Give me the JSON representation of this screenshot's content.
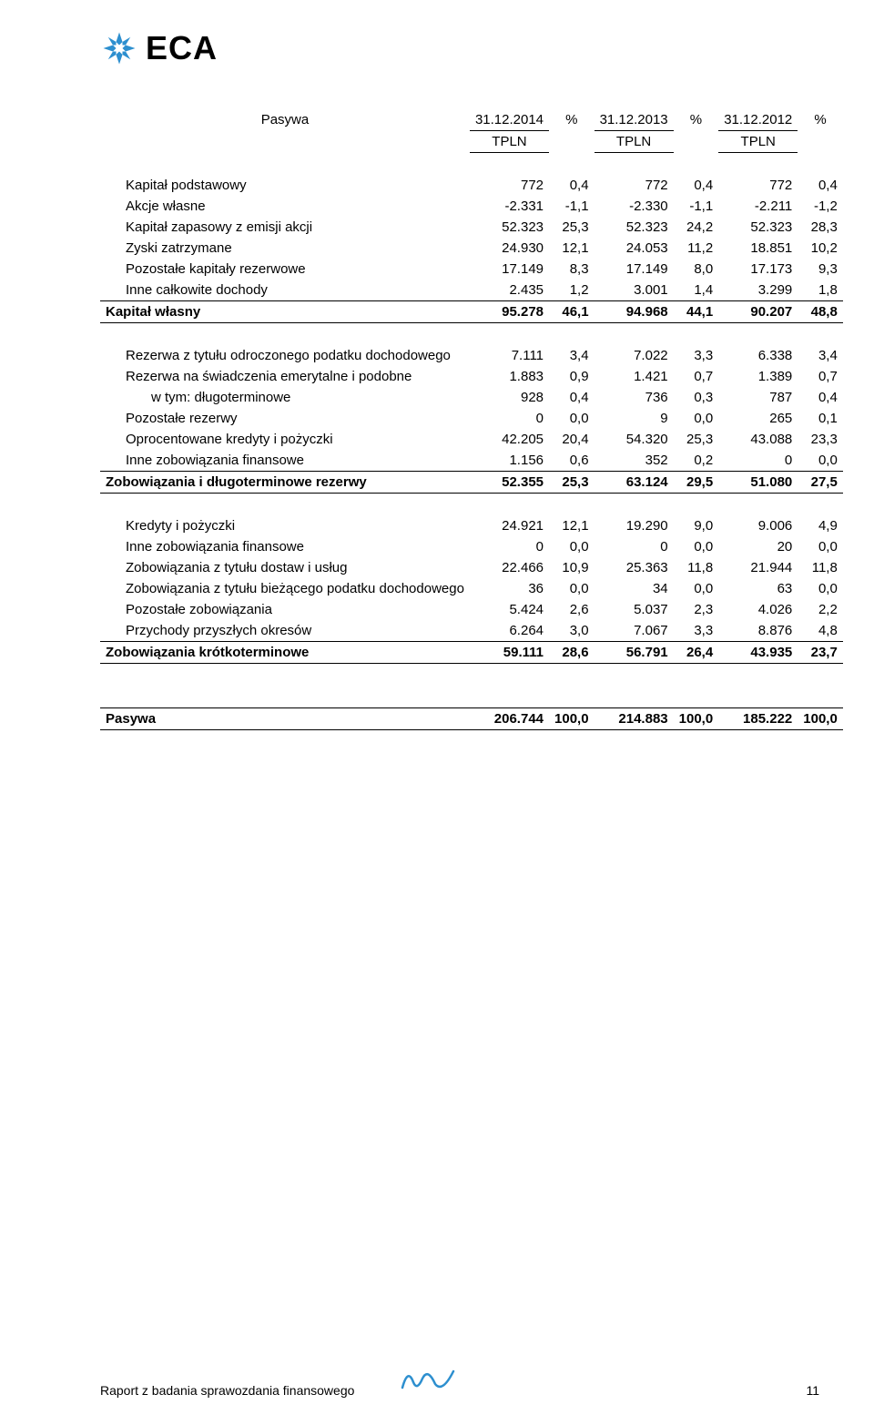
{
  "brand": {
    "name": "ECA",
    "logo_color": "#2d8fcf"
  },
  "header": {
    "row_label": "Pasywa",
    "cols": [
      {
        "date": "31.12.2014",
        "unit": "TPLN",
        "pct": "%"
      },
      {
        "date": "31.12.2013",
        "unit": "TPLN",
        "pct": "%"
      },
      {
        "date": "31.12.2012",
        "unit": "TPLN",
        "pct": "%"
      }
    ]
  },
  "sections": [
    {
      "rows": [
        {
          "label": "Kapitał podstawowy",
          "indent": 1,
          "v": [
            "772",
            "0,4",
            "772",
            "0,4",
            "772",
            "0,4"
          ]
        },
        {
          "label": "Akcje własne",
          "indent": 1,
          "v": [
            "-2.331",
            "-1,1",
            "-2.330",
            "-1,1",
            "-2.211",
            "-1,2"
          ]
        },
        {
          "label": "Kapitał zapasowy z emisji akcji",
          "indent": 1,
          "v": [
            "52.323",
            "25,3",
            "52.323",
            "24,2",
            "52.323",
            "28,3"
          ]
        },
        {
          "label": "Zyski zatrzymane",
          "indent": 1,
          "v": [
            "24.930",
            "12,1",
            "24.053",
            "11,2",
            "18.851",
            "10,2"
          ]
        },
        {
          "label": "Pozostałe kapitały rezerwowe",
          "indent": 1,
          "v": [
            "17.149",
            "8,3",
            "17.149",
            "8,0",
            "17.173",
            "9,3"
          ]
        },
        {
          "label": "Inne całkowite dochody",
          "indent": 1,
          "v": [
            "2.435",
            "1,2",
            "3.001",
            "1,4",
            "3.299",
            "1,8"
          ]
        }
      ],
      "total": {
        "label": "Kapitał własny",
        "v": [
          "95.278",
          "46,1",
          "94.968",
          "44,1",
          "90.207",
          "48,8"
        ]
      }
    },
    {
      "rows": [
        {
          "label": "Rezerwa z tytułu odroczonego podatku dochodowego",
          "indent": 1,
          "v": [
            "7.111",
            "3,4",
            "7.022",
            "3,3",
            "6.338",
            "3,4"
          ]
        },
        {
          "label": "Rezerwa na świadczenia emerytalne i podobne",
          "indent": 1,
          "v": [
            "1.883",
            "0,9",
            "1.421",
            "0,7",
            "1.389",
            "0,7"
          ]
        },
        {
          "label": "w tym: długoterminowe",
          "indent": 2,
          "v": [
            "928",
            "0,4",
            "736",
            "0,3",
            "787",
            "0,4"
          ]
        },
        {
          "label": "Pozostałe rezerwy",
          "indent": 1,
          "v": [
            "0",
            "0,0",
            "9",
            "0,0",
            "265",
            "0,1"
          ]
        },
        {
          "label": "Oprocentowane kredyty i pożyczki",
          "indent": 1,
          "v": [
            "42.205",
            "20,4",
            "54.320",
            "25,3",
            "43.088",
            "23,3"
          ]
        },
        {
          "label": "Inne zobowiązania finansowe",
          "indent": 1,
          "v": [
            "1.156",
            "0,6",
            "352",
            "0,2",
            "0",
            "0,0"
          ]
        }
      ],
      "total": {
        "label": "Zobowiązania i długoterminowe rezerwy",
        "v": [
          "52.355",
          "25,3",
          "63.124",
          "29,5",
          "51.080",
          "27,5"
        ]
      }
    },
    {
      "rows": [
        {
          "label": "Kredyty i pożyczki",
          "indent": 1,
          "v": [
            "24.921",
            "12,1",
            "19.290",
            "9,0",
            "9.006",
            "4,9"
          ]
        },
        {
          "label": "Inne zobowiązania finansowe",
          "indent": 1,
          "v": [
            "0",
            "0,0",
            "0",
            "0,0",
            "20",
            "0,0"
          ]
        },
        {
          "label": "Zobowiązania z tytułu dostaw i usług",
          "indent": 1,
          "v": [
            "22.466",
            "10,9",
            "25.363",
            "11,8",
            "21.944",
            "11,8"
          ]
        },
        {
          "label": "Zobowiązania z tytułu bieżącego podatku dochodowego",
          "indent": 1,
          "v": [
            "36",
            "0,0",
            "34",
            "0,0",
            "63",
            "0,0"
          ]
        },
        {
          "label": "Pozostałe zobowiązania",
          "indent": 1,
          "v": [
            "5.424",
            "2,6",
            "5.037",
            "2,3",
            "4.026",
            "2,2"
          ]
        },
        {
          "label": "Przychody przyszłych okresów",
          "indent": 1,
          "v": [
            "6.264",
            "3,0",
            "7.067",
            "3,3",
            "8.876",
            "4,8"
          ]
        }
      ],
      "total": {
        "label": "Zobowiązania krótkoterminowe",
        "v": [
          "59.111",
          "28,6",
          "56.791",
          "26,4",
          "43.935",
          "23,7"
        ]
      }
    }
  ],
  "grand_total": {
    "label": "Pasywa",
    "v": [
      "206.744",
      "100,0",
      "214.883",
      "100,0",
      "185.222",
      "100,0"
    ]
  },
  "footer": {
    "left": "Raport z badania sprawozdania finansowego",
    "page_no": "11",
    "signature_color": "#2d8fcf"
  }
}
